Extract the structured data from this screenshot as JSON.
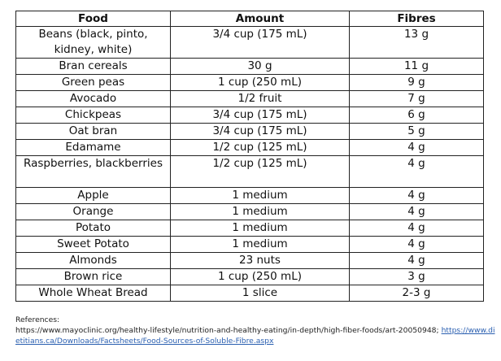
{
  "table": {
    "headers": [
      "Food",
      "Amount",
      "Fibres"
    ],
    "rows": [
      {
        "food": "Beans (black, pinto, kidney, white)",
        "amount": "3/4 cup (175 mL)",
        "fibres": "13 g",
        "tall": true
      },
      {
        "food": "Bran cereals",
        "amount": "30 g",
        "fibres": "11 g",
        "tall": false
      },
      {
        "food": "Green peas",
        "amount": "1 cup (250 mL)",
        "fibres": "9 g",
        "tall": false
      },
      {
        "food": "Avocado",
        "amount": "1/2 fruit",
        "fibres": "7 g",
        "tall": false
      },
      {
        "food": "Chickpeas",
        "amount": "3/4 cup (175 mL)",
        "fibres": "6 g",
        "tall": false
      },
      {
        "food": "Oat bran",
        "amount": "3/4 cup (175 mL)",
        "fibres": "5 g",
        "tall": false
      },
      {
        "food": "Edamame",
        "amount": "1/2 cup (125 mL)",
        "fibres": "4 g",
        "tall": false
      },
      {
        "food": "Raspberries, blackberries",
        "amount": "1/2 cup (125 mL)",
        "fibres": "4 g",
        "tall": true
      },
      {
        "food": "Apple",
        "amount": "1 medium",
        "fibres": "4 g",
        "tall": false
      },
      {
        "food": "Orange",
        "amount": "1 medium",
        "fibres": "4 g",
        "tall": false
      },
      {
        "food": "Potato",
        "amount": "1 medium",
        "fibres": "4 g",
        "tall": false
      },
      {
        "food": "Sweet Potato",
        "amount": "1 medium",
        "fibres": "4 g",
        "tall": false
      },
      {
        "food": "Almonds",
        "amount": "23 nuts",
        "fibres": "4 g",
        "tall": false
      },
      {
        "food": "Brown rice",
        "amount": "1 cup (250 mL)",
        "fibres": "3 g",
        "tall": false
      },
      {
        "food": "Whole Wheat Bread",
        "amount": "1 slice",
        "fibres": "2-3 g",
        "tall": false
      }
    ]
  },
  "references": {
    "label": "References:",
    "url_a": "https://www.mayoclinic.org/healthy-lifestyle/nutrition-and-healthy-eating/in-depth/high-fiber-foods/art-20050948;",
    "url_b": "https://www.dietitians.ca/Downloads/Factsheets/Food-Sources-of-Soluble-Fibre.aspx",
    "link_color": "#2a5fb0"
  }
}
